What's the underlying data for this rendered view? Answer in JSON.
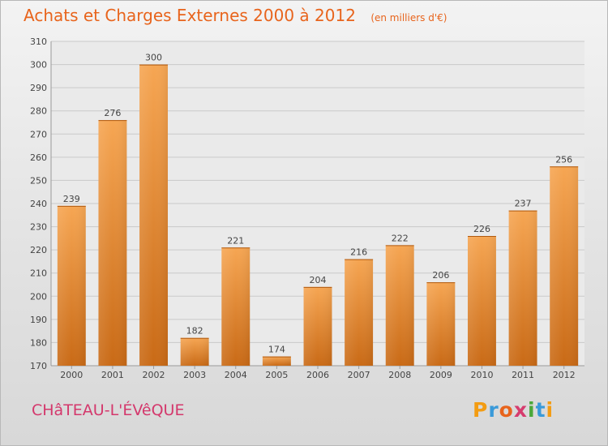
{
  "header": {
    "title": "Achats et Charges Externes 2000 à 2012",
    "unit": "(en milliers d'€)"
  },
  "commune": "CHâTEAU-L'ÉVêQUE",
  "logo": {
    "letters": [
      "P",
      "r",
      "o",
      "x",
      "i",
      "t",
      "i"
    ]
  },
  "colors": {
    "title": "#e8641c",
    "bar_top": "#f6a653",
    "bar_bottom": "#c96a16",
    "commune": "#d4386c"
  },
  "chart_data": {
    "type": "bar",
    "categories": [
      "2000",
      "2001",
      "2002",
      "2003",
      "2004",
      "2005",
      "2006",
      "2007",
      "2008",
      "2009",
      "2010",
      "2011",
      "2012"
    ],
    "values": [
      239,
      276,
      300,
      182,
      221,
      174,
      204,
      216,
      222,
      206,
      226,
      237,
      256
    ],
    "title": "Achats et Charges Externes 2000 à 2012",
    "xlabel": "",
    "ylabel": "",
    "ylim": [
      170,
      310
    ],
    "yticks": [
      170,
      180,
      190,
      200,
      210,
      220,
      230,
      240,
      250,
      260,
      270,
      280,
      290,
      300,
      310
    ],
    "grid": true,
    "legend": "none"
  }
}
